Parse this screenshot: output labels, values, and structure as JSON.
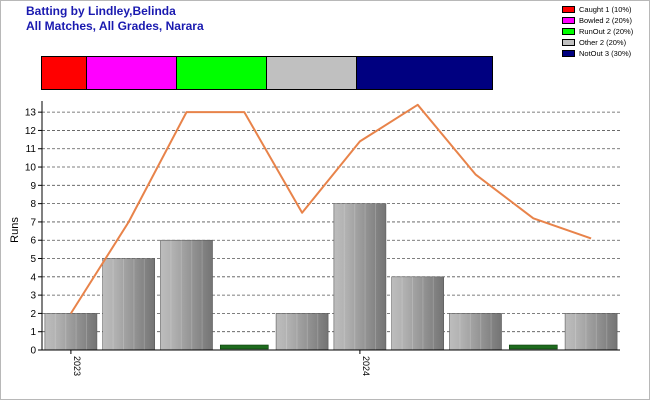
{
  "header": {
    "title_line1": "Batting by Lindley,Belinda",
    "title_line2": "All Matches, All Grades, Narara"
  },
  "legend": [
    {
      "label": "Caught 1 (10%)",
      "color": "#ff0000"
    },
    {
      "label": "Bowled 2 (20%)",
      "color": "#ff00ff"
    },
    {
      "label": "RunOut 2 (20%)",
      "color": "#00ff00"
    },
    {
      "label": "Other 2 (20%)",
      "color": "#c0c0c0"
    },
    {
      "label": "NotOut 3 (30%)",
      "color": "#000080"
    }
  ],
  "distribution": [
    {
      "name": "Caught",
      "fraction": 0.1,
      "color": "#ff0000"
    },
    {
      "name": "Bowled",
      "fraction": 0.2,
      "color": "#ff00ff"
    },
    {
      "name": "RunOut",
      "fraction": 0.2,
      "color": "#00ff00"
    },
    {
      "name": "Other",
      "fraction": 0.2,
      "color": "#c0c0c0"
    },
    {
      "name": "NotOut",
      "fraction": 0.3,
      "color": "#000080"
    }
  ],
  "chart_data": {
    "type": "bar",
    "ylabel": "Runs",
    "ylim": [
      0,
      13.5
    ],
    "yticks": [
      0,
      1,
      2,
      3,
      4,
      5,
      6,
      7,
      8,
      9,
      10,
      11,
      12,
      13
    ],
    "grid": true,
    "x_tick_labels": [
      {
        "index": 0,
        "label": "2023"
      },
      {
        "index": 5,
        "label": "2024"
      }
    ],
    "bars": [
      {
        "value": 2,
        "kind": "normal"
      },
      {
        "value": 5,
        "kind": "normal"
      },
      {
        "value": 6,
        "kind": "normal"
      },
      {
        "value": 0,
        "kind": "zero"
      },
      {
        "value": 2,
        "kind": "normal"
      },
      {
        "value": 8,
        "kind": "normal"
      },
      {
        "value": 4,
        "kind": "normal"
      },
      {
        "value": 2,
        "kind": "normal"
      },
      {
        "value": 0,
        "kind": "zero"
      },
      {
        "value": 2,
        "kind": "normal"
      }
    ],
    "trend_line": {
      "color": "#e8834a",
      "values": [
        2,
        7,
        13,
        13,
        7.5,
        11.4,
        13.4,
        9.6,
        7.2,
        6.1
      ]
    }
  }
}
